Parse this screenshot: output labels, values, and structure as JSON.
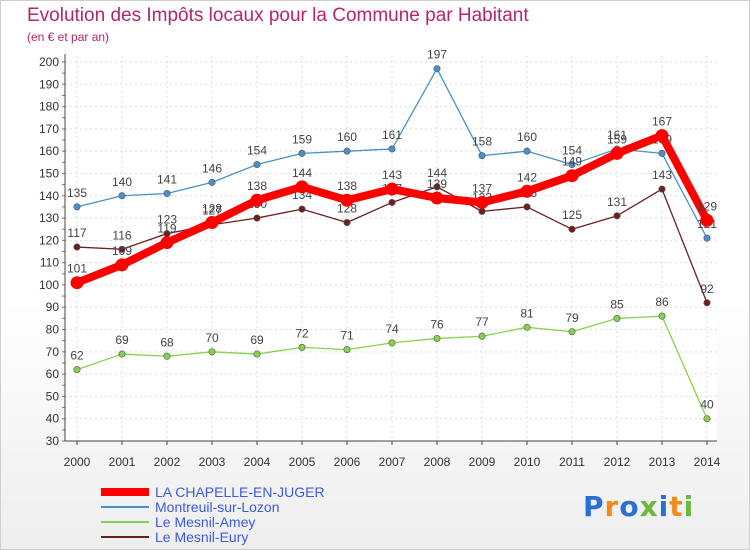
{
  "title": "Evolution des Impôts locaux pour la Commune par Habitant",
  "subtitle": "(en € et par an)",
  "logo": {
    "text": "Proxiti",
    "colors": [
      "#2b6fd6",
      "#f08b1c",
      "#2b6fd6",
      "#6ab83c",
      "#2b6fd6",
      "#f08b1c",
      "#6ab83c"
    ]
  },
  "chart_data": {
    "type": "line",
    "categories": [
      "2000",
      "2001",
      "2002",
      "2003",
      "2004",
      "2005",
      "2006",
      "2007",
      "2008",
      "2009",
      "2010",
      "2011",
      "2012",
      "2013",
      "2014"
    ],
    "ylim": [
      30,
      200
    ],
    "yticks": [
      30,
      40,
      50,
      60,
      70,
      80,
      90,
      100,
      110,
      120,
      130,
      140,
      150,
      160,
      170,
      180,
      190,
      200
    ],
    "grid": true,
    "legend_position": "bottom-left",
    "series": [
      {
        "name": "Montreuil-sur-Lozon",
        "color": "#4a90c8",
        "values": [
          135,
          140,
          141,
          146,
          154,
          159,
          160,
          161,
          197,
          158,
          160,
          154,
          161,
          159,
          121
        ],
        "labels": [
          "135",
          "140",
          "141",
          "146",
          "154",
          "159",
          "160",
          "161",
          "197",
          "158",
          "160",
          "154",
          "161",
          "159",
          "121"
        ]
      },
      {
        "name": "Le Mesnil-Amey",
        "color": "#86d24a",
        "values": [
          62,
          69,
          68,
          70,
          69,
          72,
          71,
          74,
          76,
          77,
          81,
          79,
          85,
          86,
          40
        ],
        "labels": [
          "62",
          "69",
          "68",
          "70",
          "69",
          "72",
          "71",
          "74",
          "76",
          "77",
          "81",
          "79",
          "85",
          "86",
          "40"
        ]
      },
      {
        "name": "Le Mesnil-Eury",
        "color": "#6b1f22",
        "values": [
          117,
          116,
          123,
          127,
          130,
          134,
          128,
          137,
          144,
          133,
          135,
          125,
          131,
          143,
          92
        ],
        "labels": [
          "117",
          "116",
          "123",
          "127",
          "130",
          "134",
          "128",
          "137",
          "144",
          "133",
          "135",
          "125",
          "131",
          "143",
          "92"
        ]
      },
      {
        "name": "LA CHAPELLE-EN-JUGER",
        "color": "#ff0000",
        "values": [
          101,
          109,
          119,
          128,
          138,
          144,
          138,
          143,
          139,
          137,
          142,
          149,
          159,
          167,
          129
        ],
        "labels": [
          "101",
          "109",
          "119",
          "128",
          "138",
          "144",
          "138",
          "143",
          "139",
          "137",
          "142",
          "149",
          "159",
          "167",
          "129"
        ]
      }
    ],
    "legend_order": [
      "LA CHAPELLE-EN-JUGER",
      "Montreuil-sur-Lozon",
      "Le Mesnil-Amey",
      "Le Mesnil-Eury"
    ]
  }
}
